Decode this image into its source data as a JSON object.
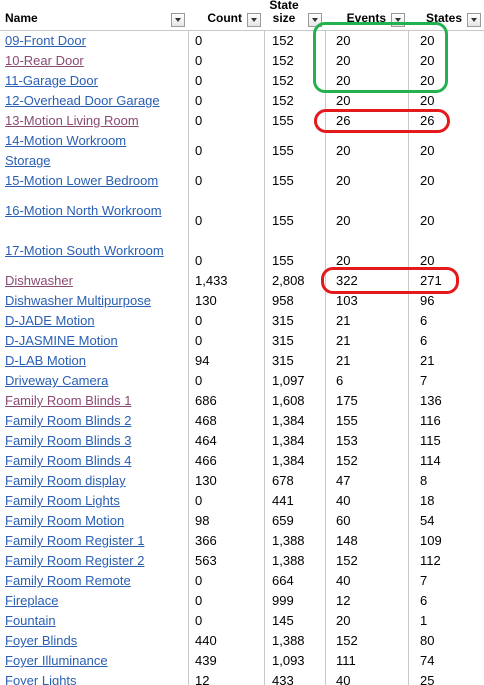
{
  "headers": {
    "name": "Name",
    "count": "Count",
    "state_size": "State size",
    "events": "Events",
    "states": "States"
  },
  "colors": {
    "link": "#2a5fb4",
    "link_visited": "#8a4a72",
    "grid": "#c8c8c8",
    "highlight_green": "#22b14c",
    "highlight_red": "#e3191c"
  },
  "icons": {
    "filter": "filter-dropdown-icon"
  },
  "rows": [
    {
      "name": "09-Front Door",
      "count": "0",
      "size": "152",
      "events": "20",
      "states": "20",
      "visited": false
    },
    {
      "name": "10-Rear Door",
      "count": "0",
      "size": "152",
      "events": "20",
      "states": "20",
      "visited": true
    },
    {
      "name": "11-Garage Door",
      "count": "0",
      "size": "152",
      "events": "20",
      "states": "20",
      "visited": false
    },
    {
      "name": "12-Overhead Door Garage",
      "count": "0",
      "size": "152",
      "events": "20",
      "states": "20",
      "visited": false
    },
    {
      "name": "13-Motion Living Room",
      "count": "0",
      "size": "155",
      "events": "26",
      "states": "26",
      "visited": true
    },
    {
      "name": "14-Motion Workroom\nStorage",
      "count": "0",
      "size": "155",
      "events": "20",
      "states": "20",
      "visited": false
    },
    {
      "name": "15-Motion Lower Bedroom",
      "count": "0",
      "size": "155",
      "events": "20",
      "states": "20",
      "visited": false
    },
    {
      "name": "16-Motion North Workroom",
      "count": "0",
      "size": "155",
      "events": "20",
      "states": "20",
      "visited": false
    },
    {
      "name": "17-Motion South Workroom",
      "count": "0",
      "size": "155",
      "events": "20",
      "states": "20",
      "visited": false
    },
    {
      "name": "Dishwasher",
      "count": "1,433",
      "size": "2,808",
      "events": "322",
      "states": "271",
      "visited": true
    },
    {
      "name": "Dishwasher Multipurpose",
      "count": "130",
      "size": "958",
      "events": "103",
      "states": "96",
      "visited": false
    },
    {
      "name": "D-JADE Motion",
      "count": "0",
      "size": "315",
      "events": "21",
      "states": "6",
      "visited": false
    },
    {
      "name": "D-JASMINE Motion",
      "count": "0",
      "size": "315",
      "events": "21",
      "states": "6",
      "visited": false
    },
    {
      "name": "D-LAB Motion",
      "count": "94",
      "size": "315",
      "events": "21",
      "states": "21",
      "visited": false
    },
    {
      "name": "Driveway Camera",
      "count": "0",
      "size": "1,097",
      "events": "6",
      "states": "7",
      "visited": false
    },
    {
      "name": "Family Room Blinds 1",
      "count": "686",
      "size": "1,608",
      "events": "175",
      "states": "136",
      "visited": true
    },
    {
      "name": "Family Room Blinds 2",
      "count": "468",
      "size": "1,384",
      "events": "155",
      "states": "116",
      "visited": false
    },
    {
      "name": "Family Room Blinds 3",
      "count": "464",
      "size": "1,384",
      "events": "153",
      "states": "115",
      "visited": false
    },
    {
      "name": "Family Room Blinds 4",
      "count": "466",
      "size": "1,384",
      "events": "152",
      "states": "114",
      "visited": false
    },
    {
      "name": "Family Room display",
      "count": "130",
      "size": "678",
      "events": "47",
      "states": "8",
      "visited": false
    },
    {
      "name": "Family Room Lights",
      "count": "0",
      "size": "441",
      "events": "40",
      "states": "18",
      "visited": false
    },
    {
      "name": "Family Room Motion",
      "count": "98",
      "size": "659",
      "events": "60",
      "states": "54",
      "visited": false
    },
    {
      "name": "Family Room Register 1",
      "count": "366",
      "size": "1,388",
      "events": "148",
      "states": "109",
      "visited": false
    },
    {
      "name": "Family Room Register 2",
      "count": "563",
      "size": "1,388",
      "events": "152",
      "states": "112",
      "visited": false
    },
    {
      "name": "Family Room Remote",
      "count": "0",
      "size": "664",
      "events": "40",
      "states": "7",
      "visited": false
    },
    {
      "name": "Fireplace",
      "count": "0",
      "size": "999",
      "events": "12",
      "states": "6",
      "visited": false
    },
    {
      "name": "Fountain",
      "count": "0",
      "size": "145",
      "events": "20",
      "states": "1",
      "visited": false
    },
    {
      "name": "Foyer Blinds",
      "count": "440",
      "size": "1,388",
      "events": "152",
      "states": "80",
      "visited": false
    },
    {
      "name": "Foyer Illuminance",
      "count": "439",
      "size": "1,093",
      "events": "111",
      "states": "74",
      "visited": false
    },
    {
      "name": "Foyer Lights",
      "count": "12",
      "size": "433",
      "events": "40",
      "states": "25",
      "visited": false
    }
  ]
}
